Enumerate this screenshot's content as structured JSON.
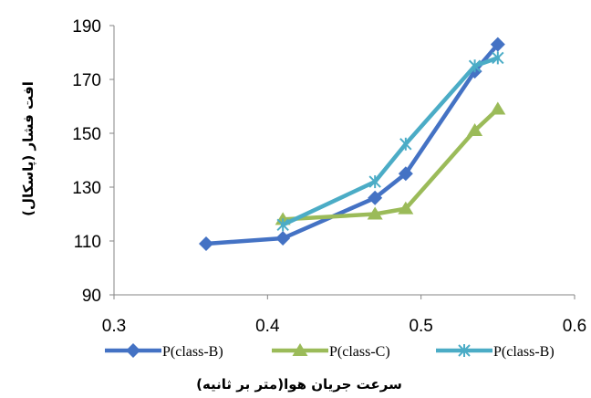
{
  "chart_data": {
    "type": "line",
    "title": "",
    "xlabel": "سرعت جریان هوا(متر بر ثانیه)",
    "ylabel": "افت فشار (پاسکال)",
    "xlim": [
      0.3,
      0.6
    ],
    "ylim": [
      90,
      190
    ],
    "xticks": [
      0.3,
      0.4,
      0.5,
      0.6
    ],
    "yticks": [
      90,
      110,
      130,
      150,
      170,
      190
    ],
    "xtick_labels": [
      "0.3",
      "0.4",
      "0.5",
      "0.6"
    ],
    "ytick_labels": [
      "90",
      "110",
      "130",
      "150",
      "170",
      "190"
    ],
    "grid": false,
    "legend_position": "bottom",
    "series": [
      {
        "name": "P(class-B)",
        "color": "#4472c4",
        "marker": "diamond",
        "x": [
          0.36,
          0.41,
          0.47,
          0.49,
          0.535,
          0.55
        ],
        "y": [
          109,
          111,
          126,
          135,
          173,
          183
        ]
      },
      {
        "name": "P(class-C)",
        "color": "#9bbb59",
        "marker": "triangle",
        "x": [
          0.41,
          0.47,
          0.49,
          0.535,
          0.55
        ],
        "y": [
          118,
          120,
          122,
          151,
          159
        ]
      },
      {
        "name": "P(class-B)",
        "color": "#4bacc6",
        "marker": "star",
        "x": [
          0.41,
          0.47,
          0.49,
          0.535,
          0.55
        ],
        "y": [
          116,
          132,
          146,
          175,
          178
        ]
      }
    ]
  }
}
